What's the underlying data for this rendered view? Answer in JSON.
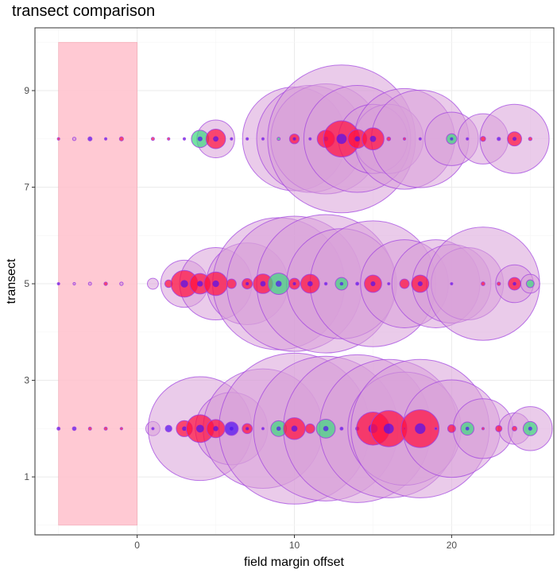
{
  "chart_data": {
    "type": "scatter",
    "title": "transect comparison",
    "xlabel": "field margin offset",
    "ylabel": "transect",
    "xlim": [
      -6.5,
      26.5
    ],
    "ylim": [
      -0.2,
      10.3
    ],
    "x_ticks": [
      0,
      10,
      20
    ],
    "y_ticks": [
      1,
      3,
      5,
      7,
      9
    ],
    "grid": true,
    "highlight_band": {
      "x": [
        -5,
        0
      ],
      "y": [
        0,
        10
      ],
      "color": "#ffc0cb"
    },
    "colors": {
      "background_bubbles": "#d8a0d8",
      "outline": "#a040e0",
      "red": "#ff1040",
      "green": "#40d880",
      "blue": "#5010f0"
    },
    "series": [
      {
        "y": 8,
        "big": [
          [
            5,
            1.2
          ],
          [
            10,
            3.3
          ],
          [
            11,
            3.4
          ],
          [
            12,
            3.5
          ],
          [
            13,
            4.7
          ],
          [
            14,
            3.4
          ],
          [
            15,
            2.2
          ],
          [
            16,
            2.2
          ],
          [
            17,
            3.2
          ],
          [
            18,
            3.1
          ],
          [
            20,
            1.7
          ],
          [
            22,
            1.6
          ],
          [
            24,
            2.2
          ]
        ],
        "small": [
          [
            -5,
            0.06,
            "r"
          ],
          [
            -4,
            0.11,
            "p"
          ],
          [
            -3,
            0.13,
            "b"
          ],
          [
            -2,
            0.08,
            "b"
          ],
          [
            -1,
            0.13,
            "r"
          ],
          [
            1,
            0.1,
            "r"
          ],
          [
            2,
            0.06,
            "r"
          ],
          [
            3,
            0.07,
            "b"
          ],
          [
            4,
            0.55,
            "g"
          ],
          [
            5,
            0.62,
            "r"
          ],
          [
            6,
            0.02,
            "b"
          ],
          [
            7,
            0.02,
            "b"
          ],
          [
            8,
            0.03,
            "b"
          ],
          [
            9,
            0.1,
            "g"
          ],
          [
            10,
            0.31,
            "r"
          ],
          [
            11,
            0.06,
            "b"
          ],
          [
            12,
            0.55,
            "r"
          ],
          [
            13,
            1.15,
            "r"
          ],
          [
            14,
            0.6,
            "r"
          ],
          [
            15,
            0.7,
            "r"
          ],
          [
            16,
            0.12,
            "r"
          ],
          [
            17,
            0.07,
            "r"
          ],
          [
            18,
            0.08,
            "b"
          ],
          [
            20,
            0.33,
            "g"
          ],
          [
            21,
            0.04,
            "b"
          ],
          [
            22,
            0.16,
            "r"
          ],
          [
            23,
            0.11,
            "b"
          ],
          [
            24,
            0.45,
            "r"
          ],
          [
            25,
            0.11,
            "r"
          ]
        ]
      },
      {
        "y": 5,
        "big": [
          [
            1,
            0.35
          ],
          [
            3,
            1.5
          ],
          [
            5,
            2.3
          ],
          [
            7,
            2.6
          ],
          [
            9,
            4.2
          ],
          [
            10,
            4.3
          ],
          [
            12,
            4.4
          ],
          [
            13,
            3.5
          ],
          [
            15,
            4.0
          ],
          [
            17,
            2.8
          ],
          [
            19,
            2.8
          ],
          [
            20,
            2.5
          ],
          [
            21,
            2.3
          ],
          [
            22,
            3.6
          ],
          [
            24,
            1.2
          ],
          [
            25,
            0.6
          ]
        ],
        "small": [
          [
            -5,
            0.05,
            "b"
          ],
          [
            -4,
            0.06,
            "p"
          ],
          [
            -3,
            0.1,
            "p"
          ],
          [
            -2,
            0.11,
            "r"
          ],
          [
            -1,
            0.11,
            "p"
          ],
          [
            2,
            0.24,
            "r"
          ],
          [
            3,
            0.85,
            "r"
          ],
          [
            4,
            0.65,
            "r"
          ],
          [
            5,
            0.75,
            "r"
          ],
          [
            6,
            0.3,
            "r"
          ],
          [
            7,
            0.33,
            "r"
          ],
          [
            8,
            0.62,
            "r"
          ],
          [
            9,
            0.68,
            "g"
          ],
          [
            10,
            0.35,
            "r"
          ],
          [
            11,
            0.6,
            "r"
          ],
          [
            12,
            0.09,
            "b"
          ],
          [
            13,
            0.4,
            "g"
          ],
          [
            14,
            0.1,
            "b"
          ],
          [
            15,
            0.55,
            "r"
          ],
          [
            16,
            0.04,
            "b"
          ],
          [
            17,
            0.3,
            "r"
          ],
          [
            18,
            0.55,
            "r"
          ],
          [
            20,
            0.05,
            "b"
          ],
          [
            22,
            0.12,
            "r"
          ],
          [
            23,
            0.11,
            "r"
          ],
          [
            24,
            0.4,
            "r"
          ],
          [
            25,
            0.25,
            "g"
          ]
        ]
      },
      {
        "y": 2,
        "big": [
          [
            1,
            0.45
          ],
          [
            4,
            3.3
          ],
          [
            6,
            2.3
          ],
          [
            8,
            3.8
          ],
          [
            10,
            4.8
          ],
          [
            12,
            4.6
          ],
          [
            14,
            4.7
          ],
          [
            16,
            4.4
          ],
          [
            17,
            3.6
          ],
          [
            18,
            4.4
          ],
          [
            20,
            3.1
          ],
          [
            22,
            1.9
          ],
          [
            24,
            1.0
          ],
          [
            25,
            1.4
          ]
        ],
        "small": [
          [
            -5,
            0.1,
            "b"
          ],
          [
            -4,
            0.12,
            "b"
          ],
          [
            -3,
            0.1,
            "r"
          ],
          [
            -2,
            0.1,
            "r"
          ],
          [
            -1,
            0.06,
            "r"
          ],
          [
            1,
            0.03,
            "b"
          ],
          [
            2,
            0.21,
            "b"
          ],
          [
            3,
            0.51,
            "r"
          ],
          [
            4,
            0.88,
            "r"
          ],
          [
            5,
            0.58,
            "r"
          ],
          [
            6,
            0.43,
            "b"
          ],
          [
            7,
            0.32,
            "r"
          ],
          [
            8,
            0.05,
            "b"
          ],
          [
            9,
            0.5,
            "g"
          ],
          [
            10,
            0.69,
            "r"
          ],
          [
            11,
            0.3,
            "r"
          ],
          [
            12,
            0.6,
            "g"
          ],
          [
            13,
            0.1,
            "b"
          ],
          [
            14,
            0.11,
            "b"
          ],
          [
            15,
            1.05,
            "r"
          ],
          [
            16,
            1.15,
            "r"
          ],
          [
            17,
            0.02,
            "b"
          ],
          [
            18,
            1.2,
            "r"
          ],
          [
            19,
            0.06,
            "b"
          ],
          [
            20,
            0.25,
            "r"
          ],
          [
            21,
            0.42,
            "g"
          ],
          [
            22,
            0.07,
            "r"
          ],
          [
            23,
            0.2,
            "r"
          ],
          [
            24,
            0.15,
            "r"
          ],
          [
            25,
            0.45,
            "g"
          ]
        ]
      }
    ]
  }
}
